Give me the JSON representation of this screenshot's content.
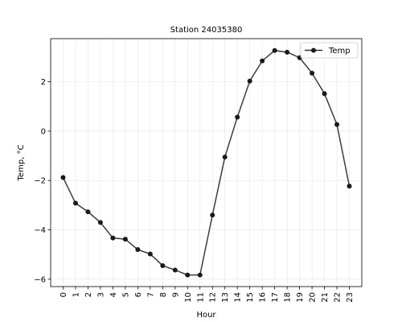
{
  "chart_data": {
    "type": "line",
    "title": "Station 24035380",
    "xlabel": "Hour",
    "ylabel": "Temp, °C",
    "x": [
      0,
      1,
      2,
      3,
      4,
      5,
      6,
      7,
      8,
      9,
      10,
      11,
      12,
      13,
      14,
      15,
      16,
      17,
      18,
      19,
      20,
      21,
      22,
      23
    ],
    "series": [
      {
        "name": "Temp",
        "color": "#333333",
        "values": [
          -1.88,
          -2.92,
          -3.27,
          -3.7,
          -4.33,
          -4.38,
          -4.8,
          -4.98,
          -5.45,
          -5.63,
          -5.83,
          -5.83,
          -3.4,
          -1.05,
          0.57,
          2.03,
          2.85,
          3.27,
          3.2,
          2.98,
          2.35,
          1.52,
          0.27,
          -2.23
        ]
      }
    ],
    "xlim": [
      -1,
      24
    ],
    "ylim": [
      -6.3,
      3.75
    ],
    "yticks": [
      -6,
      -4,
      -2,
      0,
      2
    ],
    "xtick_labels": [
      "0",
      "1",
      "2",
      "3",
      "4",
      "5",
      "6",
      "7",
      "8",
      "9",
      "10",
      "11",
      "12",
      "13",
      "14",
      "15",
      "16",
      "17",
      "18",
      "19",
      "20",
      "21",
      "22",
      "23"
    ],
    "ytick_labels": [
      "−6",
      "−4",
      "−2",
      "0",
      "2"
    ],
    "grid": true,
    "legend_placement": "top-right"
  }
}
